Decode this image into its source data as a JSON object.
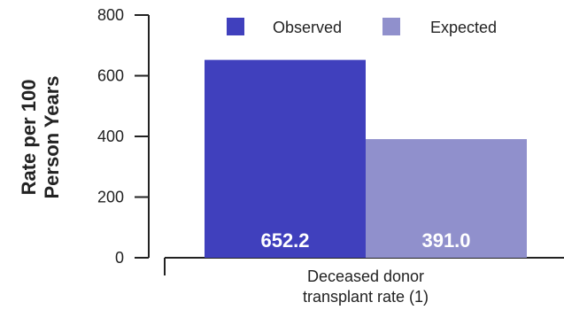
{
  "chart_data": {
    "type": "bar",
    "categories": [
      "Deceased donor transplant rate (1)"
    ],
    "category_label_lines": [
      "Deceased donor",
      "transplant rate (1)"
    ],
    "series": [
      {
        "name": "Observed",
        "values": [
          652.2
        ],
        "label": "652.2",
        "color": "#4040bd"
      },
      {
        "name": "Expected",
        "values": [
          391.0
        ],
        "label": "391.0",
        "color": "#9090cc"
      }
    ],
    "ylabel_lines": [
      "Rate per 100",
      "Person Years"
    ],
    "ylim": [
      0,
      800
    ],
    "yticks": [
      0,
      200,
      400,
      600,
      800
    ],
    "legend_position": "top",
    "grid": false
  }
}
